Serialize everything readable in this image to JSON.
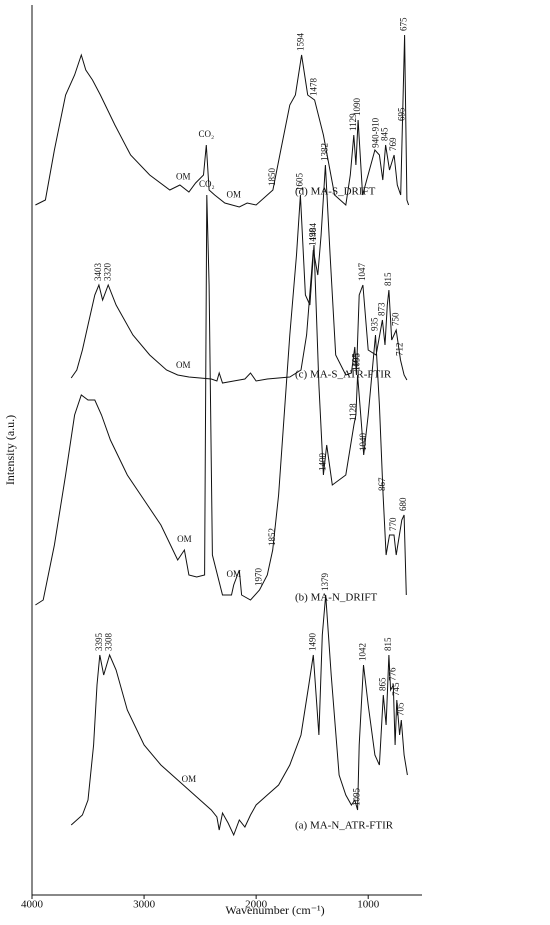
{
  "chart_data": {
    "type": "line",
    "x_label": "Wavenumber (cm⁻¹)",
    "y_label": "Intensity (a.u.)",
    "xlim": [
      4000,
      520
    ],
    "ylim": [
      0,
      890
    ],
    "xticks": [
      4000,
      3000,
      2000,
      1000
    ],
    "series": [
      {
        "name": "(d) MA-S_DRIFT",
        "color": "#111111",
        "x": [
          3970,
          3880,
          3800,
          3700,
          3620,
          3560,
          3520,
          3460,
          3390,
          3260,
          3120,
          2950,
          2770,
          2680,
          2600,
          2540,
          2470,
          2445,
          2420,
          2370,
          2280,
          2150,
          2080,
          2000,
          1900,
          1850,
          1780,
          1700,
          1650,
          1594,
          1540,
          1478,
          1400,
          1300,
          1200,
          1160,
          1129,
          1110,
          1090,
          1050,
          940,
          900,
          870,
          845,
          810,
          769,
          740,
          710,
          695,
          675,
          655,
          640
        ],
        "values": [
          690,
          695,
          745,
          800,
          820,
          840,
          825,
          815,
          800,
          770,
          740,
          720,
          705,
          710,
          703,
          712,
          720,
          750,
          705,
          700,
          692,
          688,
          692,
          690,
          700,
          705,
          745,
          790,
          800,
          840,
          800,
          795,
          760,
          700,
          690,
          720,
          760,
          730,
          775,
          700,
          745,
          740,
          715,
          750,
          725,
          740,
          710,
          700,
          770,
          860,
          695,
          690
        ],
        "peaks": [
          1850,
          1594,
          1478,
          1129,
          1090,
          {
            "value": 925,
            "label": "940-910"
          },
          845,
          769,
          695,
          675
        ],
        "notes": [
          {
            "text": "OM",
            "x": 2650
          },
          {
            "text": "CO₂",
            "x": 2445
          },
          {
            "text": "OM",
            "x": 2200
          }
        ]
      },
      {
        "name": "(c) MA-S_ATR-FTIR",
        "color": "#111111",
        "x": [
          3650,
          3600,
          3550,
          3500,
          3440,
          3403,
          3370,
          3320,
          3250,
          3100,
          2950,
          2800,
          2700,
          2600,
          2400,
          2350,
          2330,
          2300,
          2100,
          2050,
          2000,
          1900,
          1700,
          1600,
          1550,
          1490,
          1450,
          1420,
          1382,
          1340,
          1290,
          1200,
          1150,
          1120,
          1105,
          1080,
          1047,
          1000,
          930,
          873,
          850,
          830,
          815,
          790,
          770,
          750,
          712,
          680,
          655
        ],
        "values": [
          517,
          525,
          545,
          570,
          600,
          610,
          595,
          610,
          590,
          560,
          540,
          525,
          520,
          518,
          516,
          514,
          522,
          512,
          516,
          522,
          514,
          516,
          518,
          525,
          560,
          645,
          620,
          660,
          730,
          640,
          540,
          520,
          522,
          548,
          520,
          600,
          610,
          545,
          540,
          575,
          550,
          590,
          605,
          555,
          560,
          565,
          535,
          520,
          515
        ],
        "peaks": [
          3403,
          3320,
          1490,
          1382,
          1105,
          1047,
          873,
          815,
          750,
          712
        ],
        "notes": [
          {
            "text": "OM",
            "x": 2650
          }
        ]
      },
      {
        "name": "(b) MA-N_DRIFT",
        "color": "#111111",
        "x": [
          3970,
          3900,
          3800,
          3700,
          3620,
          3560,
          3500,
          3440,
          3380,
          3300,
          3150,
          3000,
          2850,
          2700,
          2640,
          2600,
          2530,
          2460,
          2440,
          2420,
          2390,
          2300,
          2220,
          2200,
          2150,
          2130,
          2050,
          1970,
          1900,
          1852,
          1800,
          1700,
          1640,
          1605,
          1560,
          1520,
          1484,
          1440,
          1400,
          1370,
          1320,
          1200,
          1128,
          1110,
          1095,
          1060,
          1040,
          1000,
          935,
          900,
          867,
          840,
          810,
          770,
          750,
          700,
          680,
          660
        ],
        "values": [
          290,
          295,
          350,
          420,
          480,
          500,
          495,
          495,
          480,
          455,
          420,
          395,
          370,
          335,
          345,
          320,
          318,
          320,
          700,
          610,
          340,
          300,
          300,
          310,
          325,
          300,
          295,
          305,
          320,
          345,
          400,
          560,
          640,
          700,
          600,
          590,
          650,
          510,
          420,
          450,
          410,
          420,
          470,
          480,
          520,
          470,
          440,
          480,
          560,
          490,
          400,
          340,
          360,
          360,
          340,
          375,
          380,
          300
        ],
        "peaks": [
          1970,
          1852,
          1605,
          1484,
          1400,
          1128,
          1095,
          1040,
          935,
          867,
          770,
          680
        ],
        "notes": [
          {
            "text": "OM",
            "x": 2640
          },
          {
            "text": "CO₂",
            "x": 2440
          },
          {
            "text": "OM",
            "x": 2200
          }
        ]
      },
      {
        "name": "(a) MA-N_ATR-FTIR",
        "color": "#111111",
        "x": [
          3650,
          3600,
          3550,
          3500,
          3450,
          3420,
          3395,
          3360,
          3308,
          3250,
          3150,
          3000,
          2850,
          2700,
          2600,
          2500,
          2400,
          2350,
          2330,
          2300,
          2250,
          2200,
          2150,
          2100,
          2050,
          2000,
          1900,
          1800,
          1700,
          1600,
          1530,
          1490,
          1440,
          1410,
          1379,
          1330,
          1260,
          1200,
          1150,
          1120,
          1095,
          1080,
          1042,
          1000,
          940,
          900,
          865,
          840,
          815,
          800,
          776,
          760,
          745,
          720,
          705,
          680,
          650
        ],
        "values": [
          70,
          75,
          80,
          95,
          150,
          210,
          240,
          220,
          240,
          225,
          185,
          150,
          130,
          115,
          105,
          95,
          85,
          78,
          65,
          82,
          72,
          60,
          75,
          68,
          80,
          90,
          100,
          110,
          130,
          160,
          210,
          240,
          160,
          260,
          300,
          220,
          120,
          100,
          90,
          95,
          85,
          150,
          230,
          190,
          140,
          130,
          200,
          170,
          240,
          205,
          210,
          150,
          195,
          160,
          175,
          140,
          120
        ],
        "peaks": [
          3395,
          3308,
          1490,
          1379,
          1095,
          1042,
          865,
          815,
          776,
          745,
          705
        ],
        "notes": [
          {
            "text": "OM",
            "x": 2600
          }
        ]
      }
    ]
  }
}
